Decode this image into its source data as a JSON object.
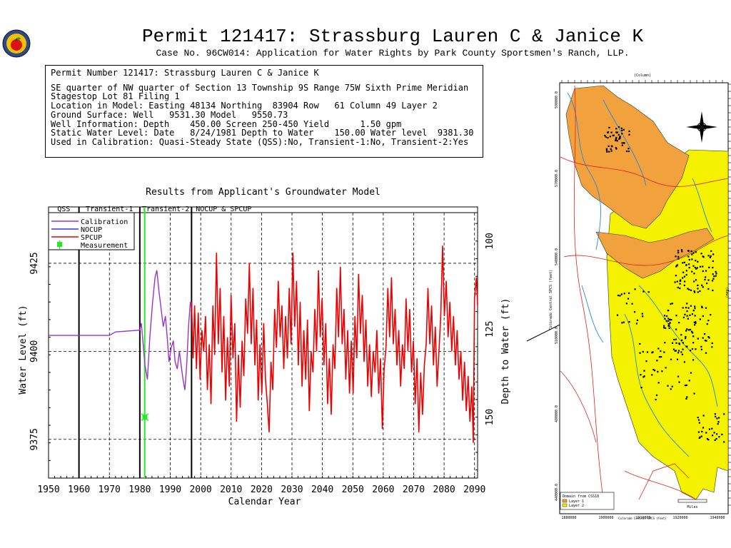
{
  "header": {
    "title": "Permit 121417:  Strassburg Lauren C & Janice K",
    "subtitle": "Case No. 96CW014: Application for Water Rights by Park County Sportsmen's Ranch, LLP."
  },
  "info": {
    "line1": "Permit Number 121417: Strassburg Lauren C & Janice K",
    "line2": "SE quarter of NW quarter of Section 13 Township 9S Range 75W Sixth Prime Meridian",
    "line3": "Stagestop Lot 81 Filing 1",
    "line4": "Location in Model: Easting 48134 Northing  83904 Row   61 Column 49 Layer 2",
    "line5": "Ground Surface: Well   9531.30 Model   9550.73",
    "line6": "Well Information: Depth    450.00 Screen 250-450 Yield      1.50 gpm",
    "line7": "Static Water Level: Date   8/24/1981 Depth to Water    150.00 Water level  9381.30",
    "line8": "Used in Calibration: Quasi-Steady State (QSS):No, Transient-1:No, Transient-2:Yes"
  },
  "chart_data": {
    "type": "line",
    "title": "Results from Applicant's Groundwater Model",
    "xlabel": "Calendar Year",
    "ylabel": "Water Level (ft)",
    "ylabel_right": "Depth to Water (ft)",
    "xlim": [
      1950,
      2091
    ],
    "ylim": [
      9364,
      9441
    ],
    "x_ticks": [
      1950,
      1960,
      1970,
      1980,
      1990,
      2000,
      2010,
      2020,
      2030,
      2040,
      2050,
      2060,
      2070,
      2080,
      2090
    ],
    "y_ticks": [
      9375,
      9400,
      9425
    ],
    "y_ticks_right": [
      100,
      125,
      150
    ],
    "grid": true,
    "periods": [
      {
        "label": "QSS",
        "start": 1950,
        "end": 1960
      },
      {
        "label": "Transient-1",
        "start": 1960,
        "end": 1980
      },
      {
        "label": "Transient-2",
        "start": 1980,
        "end": 1997
      },
      {
        "label": "NOCUP  &  SPCUP",
        "start": 1997,
        "end": 2091
      }
    ],
    "legend": {
      "position": "top-left",
      "entries": [
        {
          "name": "Calibration",
          "color": "#9933cc"
        },
        {
          "name": "NOCUP",
          "color": "#3333ff"
        },
        {
          "name": "SPCUP",
          "color": "#ee0000"
        },
        {
          "name": "Measurement",
          "color": "#22ee22"
        }
      ]
    },
    "series": [
      {
        "name": "Calibration",
        "color": "#9933cc",
        "points": [
          [
            1950,
            9404.5
          ],
          [
            1970,
            9404.5
          ],
          [
            1972,
            9405.5
          ],
          [
            1980,
            9406
          ],
          [
            1980.5,
            9408
          ],
          [
            1981,
            9403
          ],
          [
            1981.7,
            9396
          ],
          [
            1982.5,
            9392
          ],
          [
            1983.3,
            9404
          ],
          [
            1984.2,
            9414
          ],
          [
            1985,
            9421
          ],
          [
            1985.6,
            9423
          ],
          [
            1986.3,
            9417
          ],
          [
            1987,
            9412
          ],
          [
            1987.7,
            9407
          ],
          [
            1988.4,
            9410
          ],
          [
            1989,
            9404
          ],
          [
            1989.6,
            9397
          ],
          [
            1990.3,
            9401
          ],
          [
            1991,
            9403
          ],
          [
            1991.6,
            9397
          ],
          [
            1992.3,
            9395
          ],
          [
            1993,
            9400
          ],
          [
            1993.6,
            9396
          ],
          [
            1994.2,
            9392
          ],
          [
            1994.8,
            9389
          ],
          [
            1995.4,
            9396
          ],
          [
            1996,
            9407
          ],
          [
            1996.6,
            9414
          ],
          [
            1997,
            9412
          ]
        ]
      },
      {
        "name": "SPCUP",
        "color": "#ee0000",
        "points": [
          [
            1997,
            9414
          ],
          [
            1997.5,
            9398
          ],
          [
            1998,
            9413
          ],
          [
            1998.6,
            9395
          ],
          [
            1999.2,
            9411
          ],
          [
            1999.8,
            9392
          ],
          [
            2000.4,
            9406
          ],
          [
            2001,
            9400
          ],
          [
            2001.6,
            9410
          ],
          [
            2002.2,
            9389
          ],
          [
            2002.8,
            9402
          ],
          [
            2003.4,
            9385
          ],
          [
            2004,
            9413
          ],
          [
            2004.6,
            9399
          ],
          [
            2005.2,
            9428
          ],
          [
            2005.8,
            9402
          ],
          [
            2006.4,
            9418
          ],
          [
            2007,
            9394
          ],
          [
            2007.6,
            9410
          ],
          [
            2008.2,
            9386
          ],
          [
            2008.8,
            9404
          ],
          [
            2009.4,
            9390
          ],
          [
            2010,
            9416
          ],
          [
            2010.6,
            9398
          ],
          [
            2011.2,
            9408
          ],
          [
            2011.8,
            9380
          ],
          [
            2012.4,
            9399
          ],
          [
            2013,
            9384
          ],
          [
            2013.6,
            9403
          ],
          [
            2014.2,
            9393
          ],
          [
            2014.8,
            9415
          ],
          [
            2015.4,
            9405
          ],
          [
            2016,
            9425
          ],
          [
            2016.6,
            9402
          ],
          [
            2017.2,
            9418
          ],
          [
            2017.8,
            9396
          ],
          [
            2018.4,
            9409
          ],
          [
            2018.9,
            9386
          ],
          [
            2019.5,
            9402
          ],
          [
            2020.1,
            9388
          ],
          [
            2020.7,
            9408
          ],
          [
            2021.3,
            9392
          ],
          [
            2021.9,
            9385
          ],
          [
            2022.5,
            9377
          ],
          [
            2023.1,
            9397
          ],
          [
            2023.7,
            9389
          ],
          [
            2024.3,
            9412
          ],
          [
            2024.9,
            9401
          ],
          [
            2025.5,
            9420
          ],
          [
            2026.1,
            9404
          ],
          [
            2026.7,
            9413
          ],
          [
            2027.3,
            9395
          ],
          [
            2027.9,
            9410
          ],
          [
            2028.5,
            9398
          ],
          [
            2029.1,
            9418
          ],
          [
            2029.7,
            9402
          ],
          [
            2030.3,
            9428
          ],
          [
            2030.9,
            9407
          ],
          [
            2031.5,
            9420
          ],
          [
            2032.1,
            9396
          ],
          [
            2032.7,
            9414
          ],
          [
            2033.3,
            9390
          ],
          [
            2033.9,
            9406
          ],
          [
            2034.5,
            9392
          ],
          [
            2035.1,
            9409
          ],
          [
            2035.7,
            9383
          ],
          [
            2036.3,
            9400
          ],
          [
            2036.9,
            9394
          ],
          [
            2037.5,
            9412
          ],
          [
            2038.1,
            9400
          ],
          [
            2038.7,
            9423
          ],
          [
            2039.3,
            9404
          ],
          [
            2039.9,
            9415
          ],
          [
            2040.5,
            9396
          ],
          [
            2041.1,
            9408
          ],
          [
            2041.7,
            9385
          ],
          [
            2042.3,
            9398
          ],
          [
            2042.9,
            9382
          ],
          [
            2043.5,
            9402
          ],
          [
            2044.1,
            9395
          ],
          [
            2044.7,
            9418
          ],
          [
            2045.3,
            9404
          ],
          [
            2045.9,
            9424
          ],
          [
            2046.5,
            9402
          ],
          [
            2047.1,
            9412
          ],
          [
            2047.7,
            9392
          ],
          [
            2048.3,
            9406
          ],
          [
            2048.9,
            9388
          ],
          [
            2049.5,
            9403
          ],
          [
            2050.1,
            9388
          ],
          [
            2050.7,
            9410
          ],
          [
            2051.3,
            9398
          ],
          [
            2051.9,
            9422
          ],
          [
            2052.5,
            9405
          ],
          [
            2053.1,
            9416
          ],
          [
            2053.7,
            9397
          ],
          [
            2054.3,
            9409
          ],
          [
            2054.9,
            9390
          ],
          [
            2055.5,
            9402
          ],
          [
            2056.1,
            9387
          ],
          [
            2056.7,
            9400
          ],
          [
            2057.3,
            9394
          ],
          [
            2057.9,
            9406
          ],
          [
            2058.5,
            9388
          ],
          [
            2059.1,
            9398
          ],
          [
            2059.7,
            9378
          ],
          [
            2060.3,
            9395
          ],
          [
            2060.9,
            9401
          ],
          [
            2061.5,
            9418
          ],
          [
            2062.1,
            9404
          ],
          [
            2062.7,
            9421
          ],
          [
            2063.3,
            9402
          ],
          [
            2063.9,
            9412
          ],
          [
            2064.5,
            9396
          ],
          [
            2065.1,
            9406
          ],
          [
            2065.7,
            9390
          ],
          [
            2066.3,
            9402
          ],
          [
            2066.9,
            9395
          ],
          [
            2067.5,
            9415
          ],
          [
            2068.1,
            9400
          ],
          [
            2068.7,
            9412
          ],
          [
            2069.3,
            9394
          ],
          [
            2069.9,
            9403
          ],
          [
            2070.5,
            9385
          ],
          [
            2071.1,
            9398
          ],
          [
            2071.7,
            9377
          ],
          [
            2072.3,
            9394
          ],
          [
            2072.9,
            9382
          ],
          [
            2073.5,
            9396
          ],
          [
            2074.1,
            9402
          ],
          [
            2074.7,
            9418
          ],
          [
            2075.3,
            9402
          ],
          [
            2075.9,
            9413
          ],
          [
            2076.5,
            9396
          ],
          [
            2077.1,
            9407
          ],
          [
            2077.7,
            9390
          ],
          [
            2078.3,
            9400
          ],
          [
            2078.9,
            9410
          ],
          [
            2079.5,
            9430
          ],
          [
            2080.1,
            9410
          ],
          [
            2080.7,
            9420
          ],
          [
            2081.3,
            9404
          ],
          [
            2081.9,
            9414
          ],
          [
            2082.5,
            9400
          ],
          [
            2083.1,
            9410
          ],
          [
            2083.7,
            9396
          ],
          [
            2084.3,
            9406
          ],
          [
            2084.9,
            9392
          ],
          [
            2085.5,
            9400
          ],
          [
            2086.1,
            9386
          ],
          [
            2086.7,
            9397
          ],
          [
            2087.3,
            9383
          ],
          [
            2087.9,
            9393
          ],
          [
            2088.5,
            9380
          ],
          [
            2089.1,
            9390
          ],
          [
            2089.6,
            9374
          ],
          [
            2090,
            9415
          ],
          [
            2090.6,
            9421
          ],
          [
            2091,
            9413
          ]
        ]
      }
    ],
    "vertical_lines": [
      {
        "x": 1960,
        "color": "#000000"
      },
      {
        "x": 1980,
        "color": "#000000"
      },
      {
        "x": 1997,
        "color": "#000000"
      },
      {
        "x": 1981.6,
        "color": "#22ee22"
      }
    ],
    "measurement": {
      "x": 1981.65,
      "y": 9381.3,
      "color": "#22ee22"
    }
  },
  "map": {
    "top_label": "(Column)",
    "left_label": "Colorado Central SPCS (feet)",
    "bottom_label": "Colorado Central SPCS (feet)",
    "right_label": "(Row)",
    "left_ticks": [
      "590000.0",
      "570000.0",
      "540000.0",
      "510000.0",
      "480000.0",
      "440000.0"
    ],
    "bottom_ticks": [
      "1880000",
      "1900000",
      "1910000",
      "1920000",
      "1940000"
    ],
    "legend_title": "Domain from CSS18",
    "legend_layer1": "Layer 1",
    "legend_layer2": "Layer 2",
    "scale_label": "Miles",
    "colors": {
      "orange": "#f2a23c",
      "yellow": "#f5f200",
      "red": "#dd2222",
      "blue": "#2288dd"
    }
  }
}
